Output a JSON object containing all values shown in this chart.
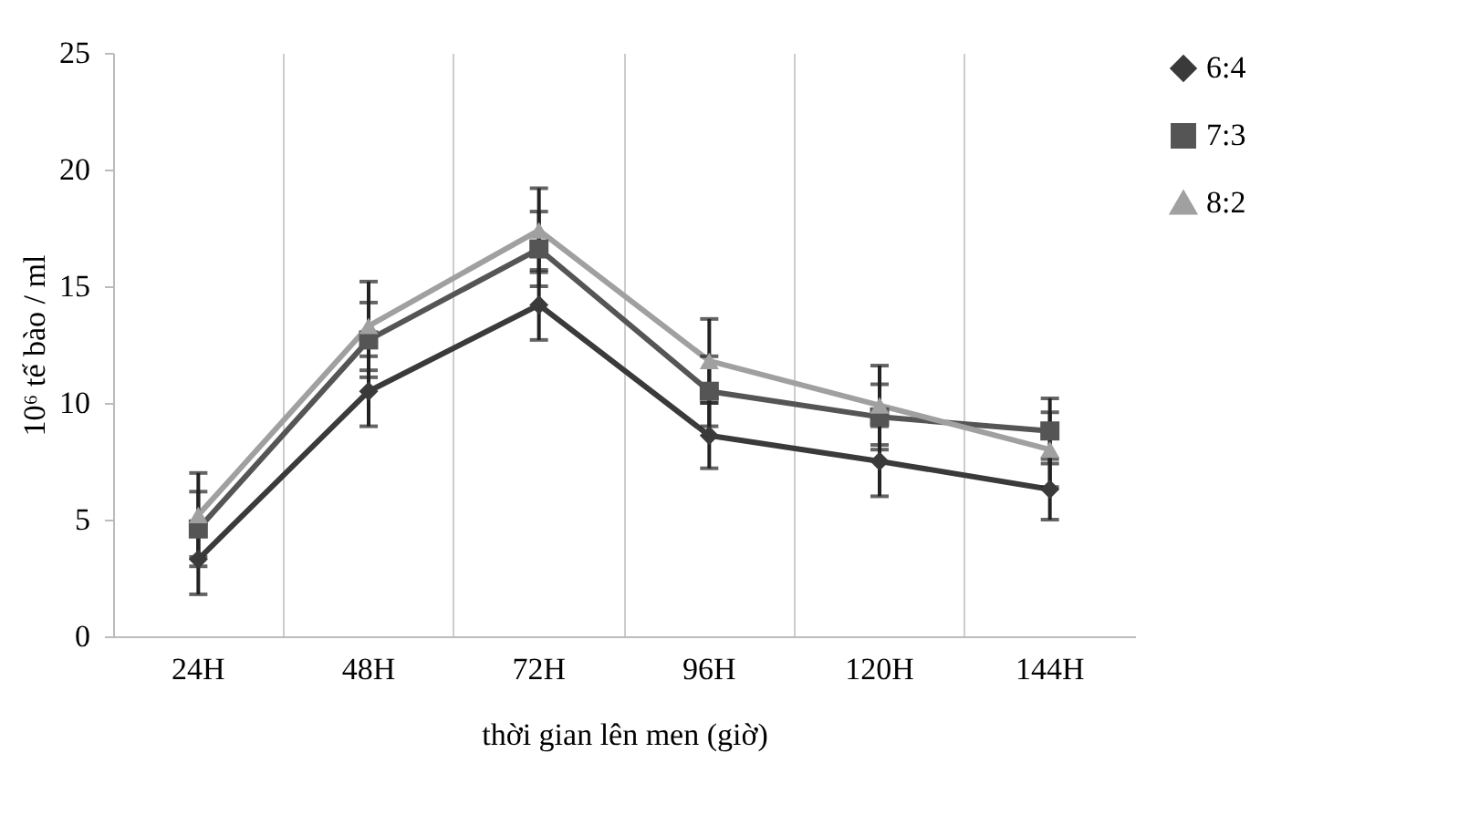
{
  "chart_data": {
    "type": "line",
    "xlabel": "thời gian lên men (giờ)",
    "ylabel": "10⁶ tế bào / ml",
    "categories": [
      "24H",
      "48H",
      "72H",
      "96H",
      "120H",
      "144H"
    ],
    "series": [
      {
        "name": "6:4",
        "color": "#3a3a3a",
        "marker": "diamond",
        "values": [
          3.3,
          10.5,
          14.2,
          8.6,
          7.5,
          6.3
        ],
        "errors": [
          1.5,
          1.5,
          1.5,
          1.4,
          1.5,
          1.3
        ]
      },
      {
        "name": "7:3",
        "color": "#555555",
        "marker": "square",
        "values": [
          4.6,
          12.7,
          16.6,
          10.5,
          9.4,
          8.8
        ],
        "errors": [
          1.6,
          1.6,
          1.6,
          1.5,
          1.4,
          1.4
        ]
      },
      {
        "name": "8:2",
        "color": "#a0a0a0",
        "marker": "triangle",
        "values": [
          5.2,
          13.3,
          17.4,
          11.8,
          9.9,
          8.0
        ],
        "errors": [
          1.8,
          1.9,
          1.8,
          1.8,
          1.7,
          1.6
        ]
      }
    ],
    "ylim": [
      0,
      25
    ],
    "yticks": [
      0,
      5,
      10,
      15,
      20,
      25
    ],
    "grid": "x",
    "legend": "right",
    "line_style": "solid"
  }
}
